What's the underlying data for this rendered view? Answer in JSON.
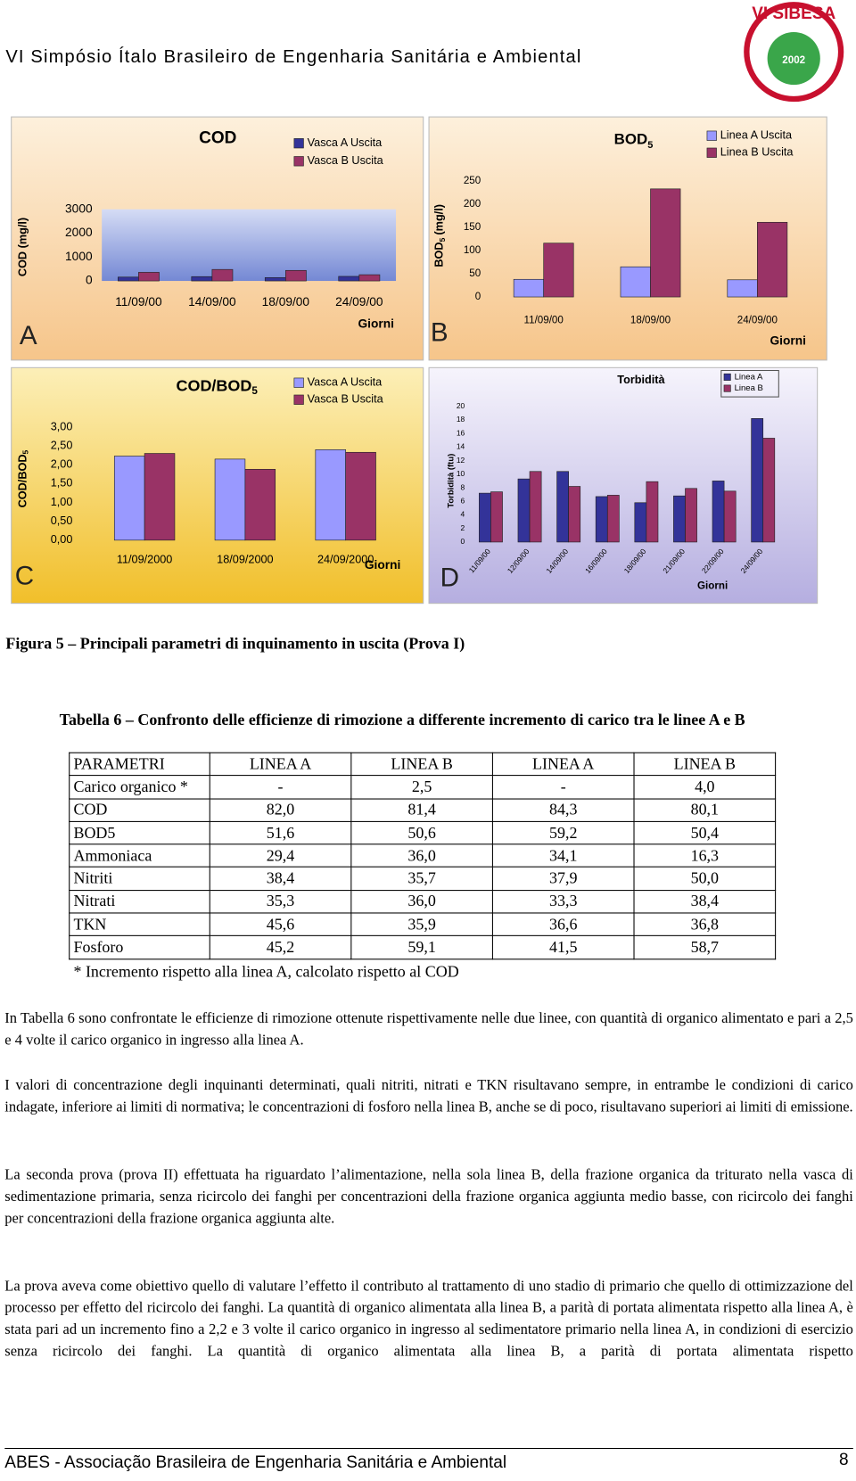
{
  "header": {
    "title": "VI Simpósio Ítalo Brasileiro de Engenharia Sanitária e Ambiental"
  },
  "logo": {
    "title": "VI SIBESA",
    "year": "2002"
  },
  "chart_data": [
    {
      "type": "bar",
      "panel_letter": "A",
      "title": "COD",
      "y_label": "COD (mg/l)",
      "x_label": "Giorni",
      "categories": [
        "11/09/00",
        "14/09/00",
        "18/09/00",
        "24/09/00"
      ],
      "ylim": [
        0,
        3000
      ],
      "yticks": [
        0,
        1000,
        2000,
        3000
      ],
      "series": [
        {
          "name": "Vasca A Uscita",
          "color": "#333399",
          "values": [
            160,
            180,
            140,
            190
          ]
        },
        {
          "name": "Vasca B Uscita",
          "color": "#993366",
          "values": [
            360,
            480,
            440,
            260
          ]
        }
      ]
    },
    {
      "type": "bar",
      "panel_letter": "B",
      "title": "BOD",
      "title_sub": "5",
      "y_label": "BOD",
      "y_label_sub": "5",
      "y_label_end": "(mg/l)",
      "x_label": "Giorni",
      "categories": [
        "11/09/00",
        "18/09/00",
        "24/09/00"
      ],
      "ylim": [
        0,
        250
      ],
      "yticks": [
        0,
        50,
        100,
        150,
        200,
        250
      ],
      "series": [
        {
          "name": "Linea A Uscita",
          "color": "#9999ff",
          "values": [
            38,
            65,
            37
          ]
        },
        {
          "name": "Linea B Uscita",
          "color": "#993366",
          "values": [
            116,
            233,
            161
          ]
        }
      ]
    },
    {
      "type": "bar",
      "panel_letter": "C",
      "title": "COD/BOD",
      "title_sub": "5",
      "y_label": "COD/BOD",
      "y_label_sub": "5",
      "x_label": "Giorni",
      "categories": [
        "11/09/2000",
        "18/09/2000",
        "24/09/2000"
      ],
      "ylim": [
        0,
        3
      ],
      "yticks": [
        {
          "value": 0,
          "label": "0,00"
        },
        {
          "value": 0.5,
          "label": "0,50"
        },
        {
          "value": 1,
          "label": "1,00"
        },
        {
          "value": 1.5,
          "label": "1,50"
        },
        {
          "value": 2,
          "label": "2,00"
        },
        {
          "value": 2.5,
          "label": "2,50"
        },
        {
          "value": 3,
          "label": "3,00"
        }
      ],
      "series": [
        {
          "name": "Vasca A Uscita",
          "color": "#9999ff",
          "values": [
            2.23,
            2.15,
            2.4
          ]
        },
        {
          "name": "Vasca B Uscita",
          "color": "#993366",
          "values": [
            2.3,
            1.88,
            2.33
          ]
        }
      ]
    },
    {
      "type": "bar",
      "panel_letter": "D",
      "title": "Torbidità",
      "y_label": "Torbidità (ftu)",
      "x_label": "Giorni",
      "categories": [
        "11/09/00",
        "12/09/00",
        "14/09/00",
        "16/09/00",
        "18/09/00",
        "21/09/00",
        "22/09/00",
        "24/09/00"
      ],
      "ylim": [
        0,
        20
      ],
      "yticks": [
        0,
        2,
        4,
        6,
        8,
        10,
        12,
        14,
        16,
        18,
        20
      ],
      "series": [
        {
          "name": "Linea A",
          "color": "#333399",
          "values": [
            7.2,
            9.3,
            10.4,
            6.7,
            5.8,
            6.8,
            9.0,
            18.2
          ]
        },
        {
          "name": "Linea B",
          "color": "#993366",
          "values": [
            7.4,
            10.4,
            8.2,
            6.9,
            8.9,
            7.9,
            7.5,
            15.3
          ]
        }
      ]
    }
  ],
  "figure_caption": "Figura 5 – Principali parametri di inquinamento in uscita (Prova I)",
  "table": {
    "title": "Tabella 6 – Confronto delle efficienze di rimozione a differente incremento di carico tra le linee A e B",
    "header": [
      "PARAMETRI",
      "LINEA A",
      "LINEA B",
      "LINEA A",
      "LINEA B"
    ],
    "rows": [
      [
        "Carico organico *",
        "-",
        "2,5",
        "-",
        "4,0"
      ],
      [
        "COD",
        "82,0",
        "81,4",
        "84,3",
        "80,1"
      ],
      [
        "BOD5",
        "51,6",
        "50,6",
        "59,2",
        "50,4"
      ],
      [
        "Ammoniaca",
        "29,4",
        "36,0",
        "34,1",
        "16,3"
      ],
      [
        "Nitriti",
        "38,4",
        "35,7",
        "37,9",
        "50,0"
      ],
      [
        "Nitrati",
        "35,3",
        "36,0",
        "33,3",
        "38,4"
      ],
      [
        "TKN",
        "45,6",
        "35,9",
        "36,6",
        "36,8"
      ],
      [
        "Fosforo",
        "45,2",
        "59,1",
        "41,5",
        "58,7"
      ]
    ],
    "footnote": "* Incremento rispetto alla linea A, calcolato rispetto al COD"
  },
  "paragraphs": [
    "In Tabella 6 sono confrontate le efficienze di rimozione ottenute rispettivamente nelle due linee, con quantità di organico alimentato e pari a 2,5 e 4 volte il carico organico in ingresso alla linea A.",
    "I valori di concentrazione degli inquinanti determinati, quali nitriti, nitrati e TKN risultavano sempre, in entrambe le condizioni di carico indagate, inferiore ai limiti di normativa; le concentrazioni di fosforo nella linea B, anche se di poco, risultavano superiori ai limiti di emissione.",
    "La seconda prova (prova II) effettuata ha riguardato l’alimentazione, nella sola linea B, della frazione organica da triturato nella vasca di sedimentazione primaria, senza ricircolo dei fanghi per concentrazioni della frazione organica aggiunta medio basse, con ricircolo dei fanghi per concentrazioni della frazione organica aggiunta alte.",
    "La prova aveva come obiettivo quello di valutare l’effetto il contributo al trattamento di uno stadio di primario che quello di ottimizzazione del processo per effetto del ricircolo dei fanghi. La quantità di organico alimentata alla linea B, a parità di portata alimentata rispetto alla linea A, è stata pari ad un incremento fino a 2,2 e 3 volte il carico organico in ingresso al sedimentatore primario nella linea A, in condizioni di esercizio senza ricircolo dei fanghi. La quantità di organico alimentata alla linea B, a parità di portata alimentata rispetto"
  ],
  "footer": {
    "text": "ABES - Associação Brasileira de Engenharia Sanitária e Ambiental",
    "page": "8"
  }
}
